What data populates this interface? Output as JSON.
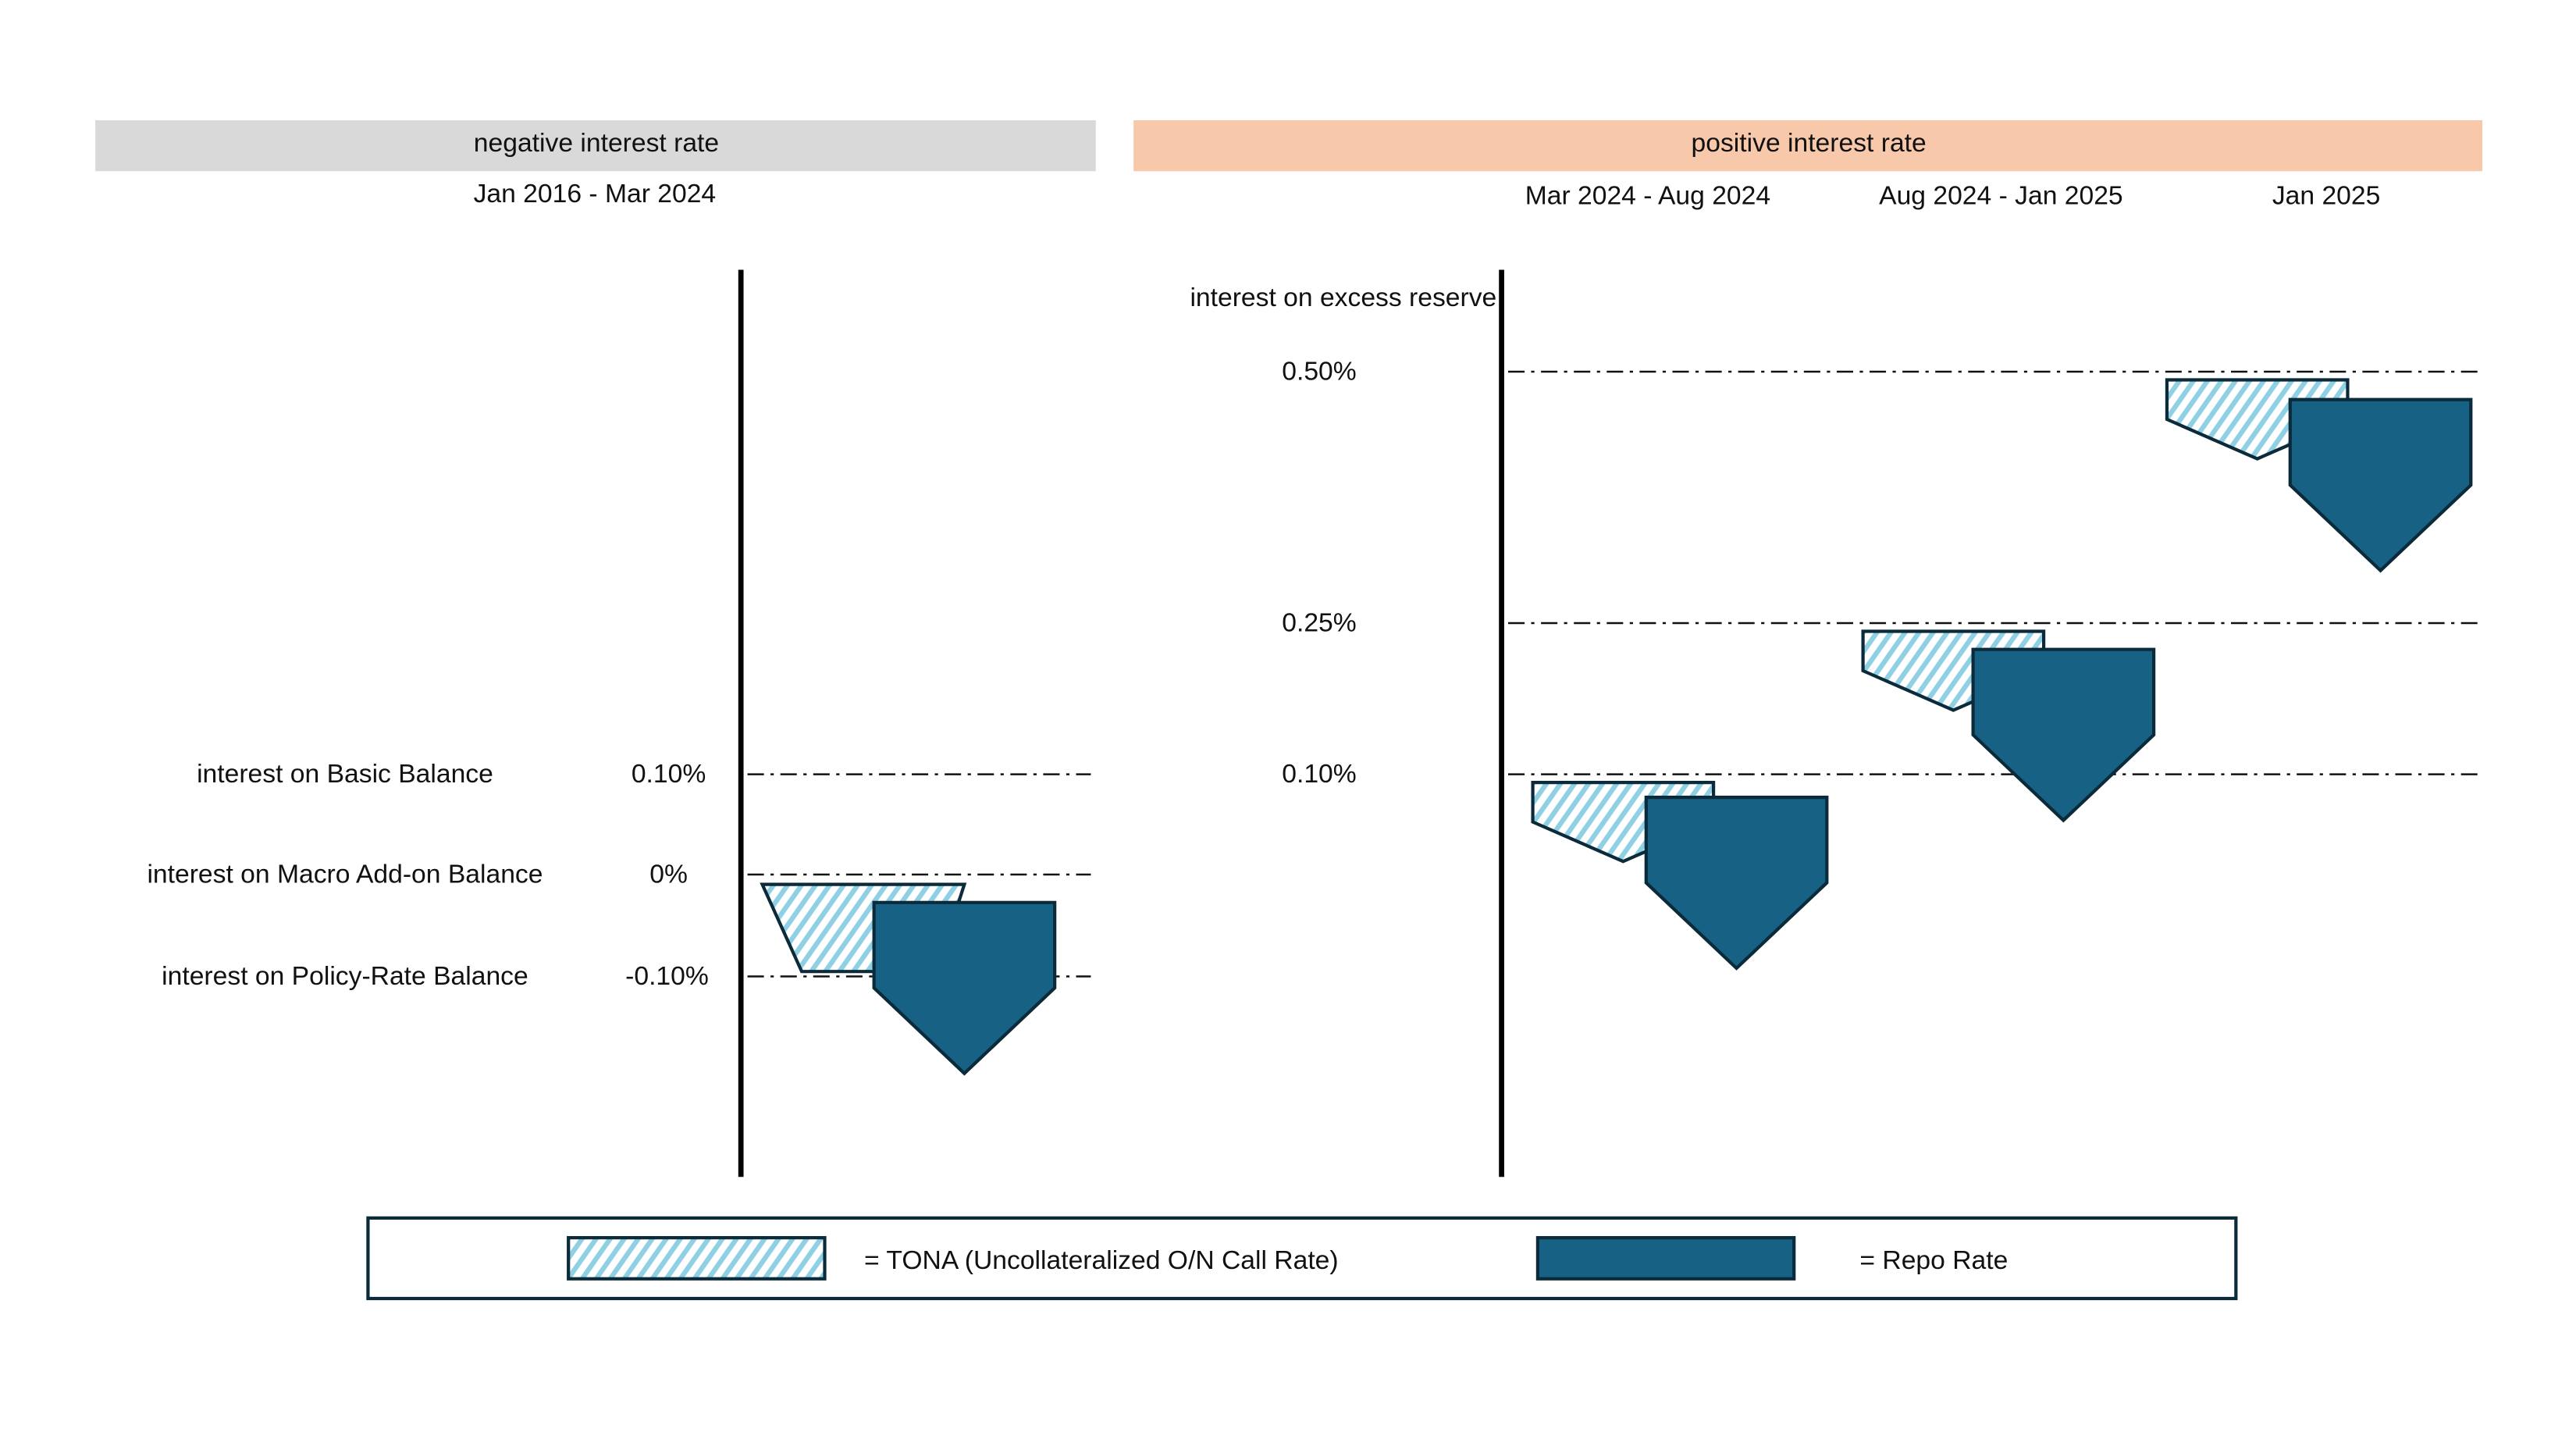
{
  "header": {
    "negative_band": "negative interest rate",
    "positive_band": "positive interest rate",
    "negative_period": "Jan 2016 - Mar 2024",
    "positive_periods": [
      "Mar 2024 - Aug 2024",
      "Aug 2024 - Jan 2025",
      "Jan 2025"
    ]
  },
  "left_panel": {
    "rows": [
      {
        "label": "interest on Basic Balance",
        "value": "0.10%"
      },
      {
        "label": "interest on Macro Add-on Balance",
        "value": "0%"
      },
      {
        "label": "interest on Policy-Rate Balance",
        "value": "-0.10%"
      }
    ]
  },
  "right_panel": {
    "axis_label": "interest on excess reserve",
    "levels": [
      "0.50%",
      "0.25%",
      "0.10%"
    ]
  },
  "legend": {
    "tona": "= TONA (Uncollateralized O/N Call Rate)",
    "repo": "= Repo Rate"
  },
  "colors": {
    "negative_band": "#d9d9d9",
    "positive_band": "#f8c8ab",
    "repo_fill": "#176184",
    "tona_hatch": "#8fd0e4",
    "outline": "#0b2a3a"
  }
}
